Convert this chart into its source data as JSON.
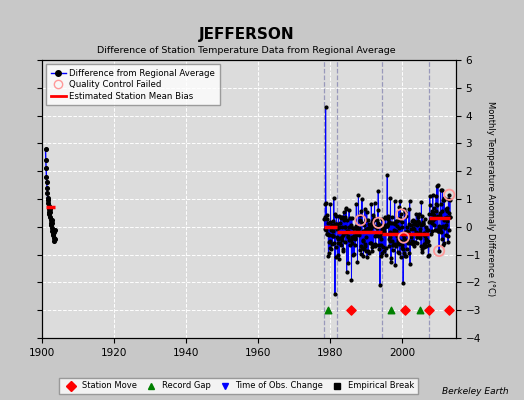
{
  "title": "JEFFERSON",
  "subtitle": "Difference of Station Temperature Data from Regional Average",
  "ylabel": "Monthly Temperature Anomaly Difference (°C)",
  "credit": "Berkeley Earth",
  "xlim": [
    1900,
    2015
  ],
  "ylim": [
    -4,
    6
  ],
  "yticks": [
    -4,
    -3,
    -2,
    -1,
    0,
    1,
    2,
    3,
    4,
    5,
    6
  ],
  "xticks": [
    1900,
    1920,
    1940,
    1960,
    1980,
    2000
  ],
  "bg_color": "#c8c8c8",
  "plot_bg_color": "#dcdcdc",
  "grid_color": "#ffffff",
  "early_years_start": 1901.0,
  "early_years_end": 1903.6,
  "early_n": 32,
  "early_bias": 0.7,
  "early_bias_start": 1901.0,
  "early_bias_end": 1903.6,
  "modern_start": 1978.5,
  "modern_end": 2013.5,
  "bias_segments": [
    {
      "start": 1978.5,
      "end": 1982.0,
      "val": 0.0
    },
    {
      "start": 1982.0,
      "end": 1994.5,
      "val": -0.2
    },
    {
      "start": 1994.5,
      "end": 2007.5,
      "val": -0.25
    },
    {
      "start": 2007.5,
      "end": 2013.5,
      "val": 0.3
    }
  ],
  "vertical_lines": [
    1978.5,
    1982.0,
    1994.5,
    2007.5
  ],
  "station_moves": [
    1986.0,
    2001.0,
    2007.5,
    2013.0
  ],
  "record_gaps": [
    1979.5,
    1997.0,
    2005.0
  ],
  "event_y": -3.0,
  "spike_idx": 4,
  "spike_val": 4.3,
  "qc_years": [
    1988.5,
    1993.5,
    1999.8,
    2000.5,
    2010.3,
    2013.2
  ],
  "line_color_blue": "#0000ff",
  "qc_circle_color": "#ff9999",
  "bias_color": "#ff0000",
  "vline_color": "#9999bb"
}
